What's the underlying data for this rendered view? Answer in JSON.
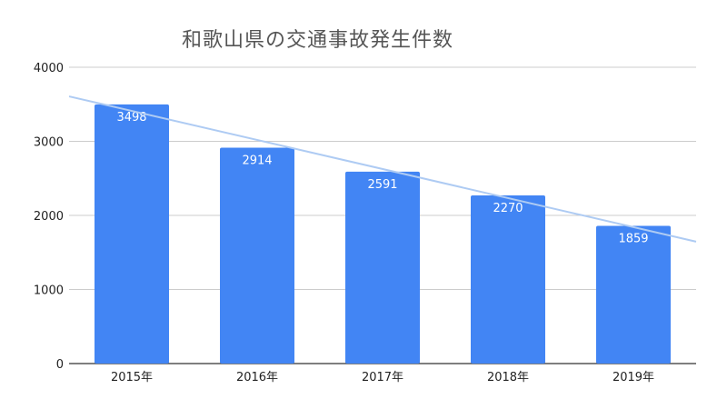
{
  "chart_data": {
    "type": "bar",
    "title": "和歌山県の交通事故発生件数",
    "categories": [
      "2015年",
      "2016年",
      "2017年",
      "2018年",
      "2019年"
    ],
    "values": [
      3498,
      2914,
      2591,
      2270,
      1859
    ],
    "xlabel": "",
    "ylabel": "",
    "ylim": [
      0,
      4000
    ],
    "yticks": [
      0,
      1000,
      2000,
      3000,
      4000
    ],
    "grid": true,
    "legend": "none",
    "trendline": true,
    "colors": {
      "bar": "#4285f4",
      "trendline": "#aecbf3",
      "grid": "#cccccc",
      "axis": "#333333"
    }
  }
}
